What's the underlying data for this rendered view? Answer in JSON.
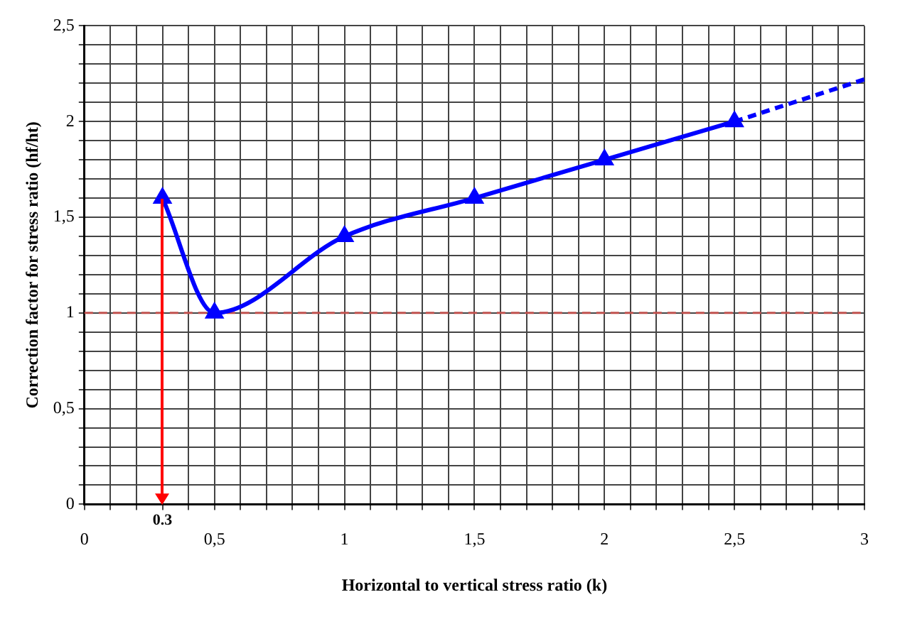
{
  "chart_data": {
    "type": "line",
    "xlabel": "Horizontal to vertical stress ratio (k)",
    "ylabel": "Correction factor for stress ratio (hf/ht)",
    "series": [
      {
        "color": "#0000ff",
        "marker": "triangle",
        "line_style": "solid",
        "x": [
          0.3,
          0.5,
          1,
          1.5,
          2,
          2.5
        ],
        "values": [
          1.6,
          1.0,
          1.4,
          1.6,
          1.8,
          2.0
        ]
      },
      {
        "color": "#0000ff",
        "marker": "none",
        "line_style": "dashed",
        "x": [
          2.5,
          3
        ],
        "values": [
          2.0,
          2.22
        ]
      }
    ],
    "xlim": [
      0,
      3
    ],
    "xticks": [
      0,
      {
        "value": 0.1,
        "label": null
      },
      {
        "value": 0.2,
        "label": null
      },
      {
        "value": 0.3,
        "label": null
      },
      {
        "value": 0.4,
        "label": null
      },
      {
        "value": 0.5,
        "label": "0,5"
      },
      {
        "value": 0.6,
        "label": null
      },
      {
        "value": 0.7,
        "label": null
      },
      {
        "value": 0.8,
        "label": null
      },
      {
        "value": 0.9,
        "label": null
      },
      1,
      {
        "value": 1.1,
        "label": null
      },
      {
        "value": 1.2,
        "label": null
      },
      {
        "value": 1.3,
        "label": null
      },
      {
        "value": 1.4,
        "label": null
      },
      {
        "value": 1.5,
        "label": "1,5"
      },
      {
        "value": 1.6,
        "label": null
      },
      {
        "value": 1.7,
        "label": null
      },
      {
        "value": 1.8,
        "label": null
      },
      {
        "value": 1.9,
        "label": null
      },
      2,
      {
        "value": 2.1,
        "label": null
      },
      {
        "value": 2.2,
        "label": null
      },
      {
        "value": 2.3,
        "label": null
      },
      {
        "value": 2.4,
        "label": null
      },
      {
        "value": 2.5,
        "label": "2,5"
      },
      {
        "value": 2.6,
        "label": null
      },
      {
        "value": 2.7,
        "label": null
      },
      {
        "value": 2.8,
        "label": null
      },
      {
        "value": 2.9,
        "label": null
      },
      3
    ],
    "ylim": [
      0,
      2.5
    ],
    "yticks": [
      0,
      {
        "value": 0.1,
        "label": null
      },
      {
        "value": 0.2,
        "label": null
      },
      {
        "value": 0.3,
        "label": null
      },
      {
        "value": 0.4,
        "label": null
      },
      {
        "value": 0.5,
        "label": "0,5"
      },
      {
        "value": 0.6,
        "label": null
      },
      {
        "value": 0.7,
        "label": null
      },
      {
        "value": 0.8,
        "label": null
      },
      {
        "value": 0.9,
        "label": null
      },
      1,
      {
        "value": 1.1,
        "label": null
      },
      {
        "value": 1.2,
        "label": null
      },
      {
        "value": 1.3,
        "label": null
      },
      {
        "value": 1.4,
        "label": null
      },
      {
        "value": 1.5,
        "label": "1,5"
      },
      {
        "value": 1.6,
        "label": null
      },
      {
        "value": 1.7,
        "label": null
      },
      {
        "value": 1.8,
        "label": null
      },
      {
        "value": 1.9,
        "label": null
      },
      2,
      {
        "value": 2.1,
        "label": null
      },
      {
        "value": 2.2,
        "label": null
      },
      {
        "value": 2.3,
        "label": null
      },
      {
        "value": 2.4,
        "label": null
      },
      {
        "value": 2.5,
        "label": "2,5"
      }
    ],
    "grid": true,
    "legend": false,
    "ref_lines": [
      {
        "axis": "y",
        "value": 1,
        "color": "#c0504d",
        "line_style": "dashed"
      }
    ],
    "annotations": [
      {
        "text": "0.3",
        "x": 0.3,
        "y": 1.6
      }
    ]
  }
}
